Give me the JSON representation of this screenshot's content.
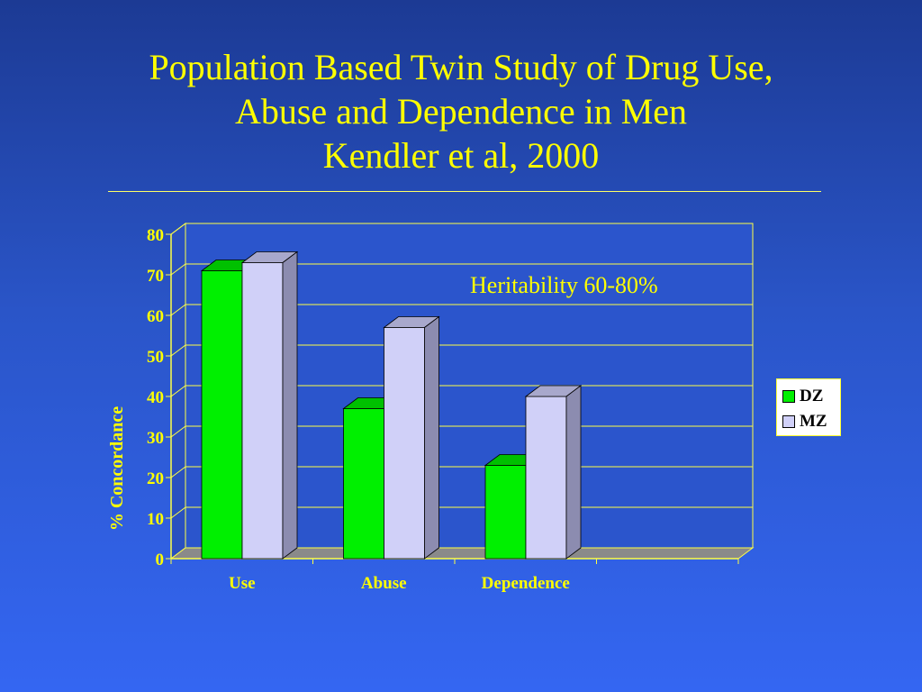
{
  "slide": {
    "title_lines": [
      "Population Based Twin Study of Drug Use,",
      "Abuse and Dependence in Men",
      "Kendler et al, 2000"
    ]
  },
  "colors": {
    "text_yellow": "#ffff00",
    "dz": "#00f000",
    "mz": "#d0d0f8",
    "floor": "#8a8a8a",
    "wall": "#2b55cc"
  },
  "chart_data": {
    "type": "bar",
    "style": "3d-clustered",
    "categories": [
      "Use",
      "Abuse",
      "Dependence"
    ],
    "series": [
      {
        "name": "DZ",
        "values": [
          71,
          37,
          23
        ]
      },
      {
        "name": "MZ",
        "values": [
          73,
          57,
          40
        ]
      }
    ],
    "xlabel": "",
    "ylabel": "% Concordance",
    "ylim": [
      0,
      80
    ],
    "yticks": [
      0,
      10,
      20,
      30,
      40,
      50,
      60,
      70,
      80
    ],
    "grid": true,
    "legend": "right",
    "annotation": "Heritability 60-80%"
  }
}
